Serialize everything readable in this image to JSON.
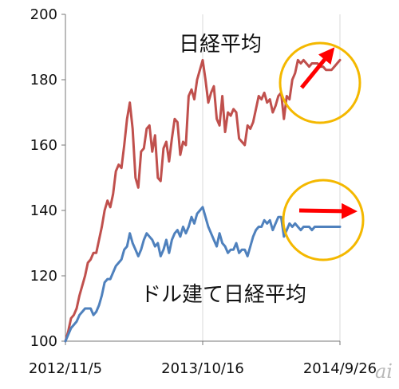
{
  "chart_data": {
    "type": "line",
    "title": "",
    "xlabel": "",
    "ylabel": "",
    "ylim": [
      100,
      200
    ],
    "yticks": [
      100,
      120,
      140,
      160,
      180,
      200
    ],
    "x_tick_labels": [
      "2012/11/5",
      "2013/10/16",
      "2014/9/26"
    ],
    "x_tick_index": [
      0,
      49,
      98
    ],
    "grid": "vertical-only",
    "x": [
      "2012/11/5",
      "",
      "",
      "",
      "",
      "",
      "",
      "",
      "",
      "",
      "",
      "",
      "",
      "",
      "",
      "",
      "",
      "",
      "",
      "",
      "",
      "",
      "",
      "",
      "",
      "",
      "",
      "",
      "",
      "",
      "",
      "",
      "",
      "",
      "",
      "",
      "",
      "",
      "",
      "",
      "",
      "",
      "",
      "",
      "",
      "",
      "",
      "",
      "",
      "2013/10/16",
      "",
      "",
      "",
      "",
      "",
      "",
      "",
      "",
      "",
      "",
      "",
      "",
      "",
      "",
      "",
      "",
      "",
      "",
      "",
      "",
      "",
      "",
      "",
      "",
      "",
      "",
      "",
      "",
      "",
      "",
      "",
      "",
      "",
      "",
      "",
      "",
      "",
      "",
      "",
      "",
      "",
      "",
      "",
      "",
      "",
      "",
      "",
      "",
      "2014/9/26"
    ],
    "series": [
      {
        "name": "日経平均",
        "color": "#c0504d",
        "values": [
          100,
          103,
          107,
          108,
          110,
          114,
          117,
          120,
          124,
          125,
          127,
          127,
          131,
          135,
          140,
          143,
          141,
          145,
          152,
          154,
          153,
          160,
          168,
          173,
          165,
          150,
          147,
          158,
          159,
          165,
          166,
          158,
          163,
          150,
          149,
          159,
          161,
          155,
          162,
          168,
          167,
          157,
          161,
          160,
          175,
          177,
          174,
          180,
          183,
          186,
          180,
          173,
          176,
          178,
          168,
          166,
          175,
          164,
          170,
          169,
          171,
          170,
          162,
          161,
          160,
          166,
          165,
          167,
          171,
          175,
          174,
          176,
          173,
          174,
          170,
          172,
          175,
          176,
          168,
          175,
          174,
          180,
          182,
          186,
          185,
          186,
          185,
          184,
          185,
          185,
          185,
          184,
          184,
          183,
          183,
          183,
          184,
          185,
          186
        ],
        "label_text": "日経平均"
      },
      {
        "name": "ドル建て日経平均",
        "color": "#4f81bd",
        "values": [
          100,
          102,
          104,
          105,
          106,
          108,
          109,
          110,
          110,
          110,
          108,
          109,
          111,
          114,
          118,
          119,
          119,
          121,
          123,
          124,
          125,
          128,
          129,
          133,
          130,
          128,
          126,
          128,
          131,
          133,
          132,
          131,
          129,
          130,
          126,
          128,
          131,
          127,
          131,
          133,
          134,
          132,
          135,
          133,
          135,
          138,
          136,
          139,
          140,
          141,
          138,
          135,
          133,
          131,
          129,
          133,
          130,
          129,
          127,
          128,
          128,
          130,
          127,
          128,
          128,
          126,
          129,
          132,
          134,
          135,
          135,
          137,
          136,
          137,
          134,
          136,
          138,
          138,
          132,
          134,
          136,
          135,
          136,
          135,
          134,
          135,
          135,
          135,
          134,
          135,
          135,
          135,
          135,
          135,
          135,
          135,
          135,
          135,
          135
        ],
        "label_text": "ドル建て日経平均"
      }
    ],
    "annotations": [
      {
        "type": "circle",
        "color": "#f4b800",
        "target": "日経平均 end"
      },
      {
        "type": "arrow",
        "color": "#ff0000",
        "direction": "up-right",
        "target": "日経平均 end"
      },
      {
        "type": "circle",
        "color": "#f4b800",
        "target": "ドル建て日経平均 end"
      },
      {
        "type": "arrow",
        "color": "#ff0000",
        "direction": "right",
        "target": "ドル建て日経平均 end"
      }
    ]
  },
  "watermark": {
    "text": "ai"
  }
}
